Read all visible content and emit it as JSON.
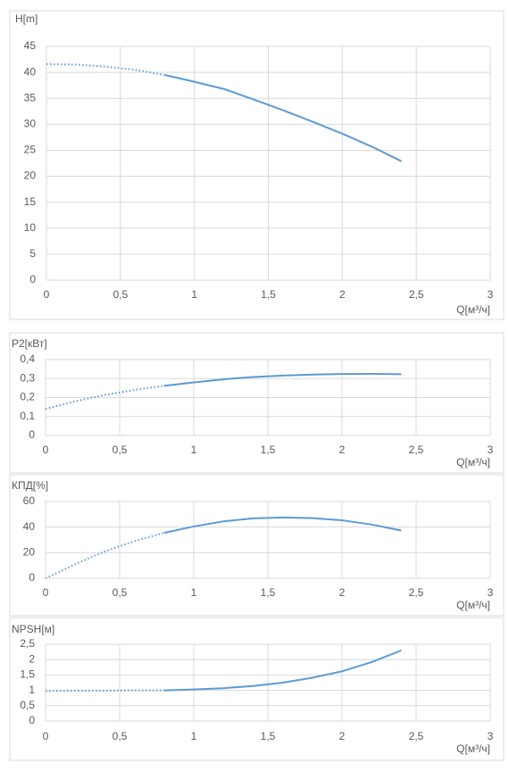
{
  "chart_data": [
    {
      "type": "line",
      "title": "H[m]",
      "x_label": "Q[м³/ч]",
      "x": [
        0,
        0.2,
        0.4,
        0.6,
        0.8,
        1.0,
        1.2,
        1.4,
        1.6,
        1.8,
        2.0,
        2.2,
        2.4
      ],
      "values": [
        41.6,
        41.5,
        41.1,
        40.5,
        39.5,
        38.2,
        36.8,
        34.8,
        32.7,
        30.5,
        28.2,
        25.7,
        22.9
      ],
      "dotted_until": 0.8,
      "color": "#5b9bd5",
      "grid": true,
      "xlim": [
        0,
        3
      ],
      "xticks": [
        0,
        {
          "value": 0.5,
          "label": "0,5"
        },
        1,
        {
          "value": 1.5,
          "label": "1,5"
        },
        2,
        {
          "value": 2.5,
          "label": "2,5"
        },
        3
      ],
      "ylim": [
        0,
        45
      ],
      "yticks": [
        0,
        5,
        10,
        15,
        20,
        25,
        30,
        35,
        40,
        45
      ]
    },
    {
      "type": "line",
      "title": "P2[кВт]",
      "x_label": "Q[м³/ч]",
      "x": [
        0,
        0.2,
        0.4,
        0.6,
        0.8,
        1.0,
        1.2,
        1.4,
        1.6,
        1.8,
        2.0,
        2.2,
        2.4
      ],
      "values": [
        0.14,
        0.18,
        0.214,
        0.24,
        0.262,
        0.28,
        0.296,
        0.308,
        0.316,
        0.321,
        0.324,
        0.325,
        0.323
      ],
      "dotted_until": 0.8,
      "color": "#5b9bd5",
      "grid": true,
      "xlim": [
        0,
        3
      ],
      "xticks": [
        0,
        {
          "value": 0.5,
          "label": "0,5"
        },
        1,
        {
          "value": 1.5,
          "label": "1,5"
        },
        2,
        {
          "value": 2.5,
          "label": "2,5"
        },
        3
      ],
      "ylim": [
        0,
        0.4
      ],
      "yticks": [
        0,
        {
          "value": 0.1,
          "label": "0,1"
        },
        {
          "value": 0.2,
          "label": "0,2"
        },
        {
          "value": 0.3,
          "label": "0,3"
        },
        {
          "value": 0.4,
          "label": "0,4"
        }
      ]
    },
    {
      "type": "line",
      "title": "КПД[%]",
      "x_label": "Q[м³/ч]",
      "x": [
        0,
        0.2,
        0.4,
        0.6,
        0.8,
        1.0,
        1.2,
        1.4,
        1.6,
        1.8,
        2.0,
        2.2,
        2.4
      ],
      "values": [
        0,
        11,
        21,
        29,
        35.5,
        40.5,
        44.5,
        46.8,
        47.5,
        47,
        45.3,
        42,
        37.3
      ],
      "dotted_until": 0.8,
      "color": "#5b9bd5",
      "grid": true,
      "xlim": [
        0,
        3
      ],
      "xticks": [
        0,
        {
          "value": 0.5,
          "label": "0,5"
        },
        1,
        {
          "value": 1.5,
          "label": "1,5"
        },
        2,
        {
          "value": 2.5,
          "label": "2,5"
        },
        3
      ],
      "ylim": [
        0,
        60
      ],
      "yticks": [
        0,
        20,
        40,
        60
      ]
    },
    {
      "type": "line",
      "title": "NPSH[м]",
      "x_label": "Q[м³/ч]",
      "x": [
        0,
        0.2,
        0.4,
        0.6,
        0.8,
        1.0,
        1.2,
        1.4,
        1.6,
        1.8,
        2.0,
        2.2,
        2.4
      ],
      "values": [
        0.98,
        0.99,
        0.99,
        1.0,
        1.0,
        1.03,
        1.07,
        1.14,
        1.25,
        1.41,
        1.62,
        1.92,
        2.3
      ],
      "dotted_until": 0.8,
      "color": "#5b9bd5",
      "grid": true,
      "xlim": [
        0,
        3
      ],
      "xticks": [
        0,
        {
          "value": 0.5,
          "label": "0,5"
        },
        1,
        {
          "value": 1.5,
          "label": "1,5"
        },
        2,
        {
          "value": 2.5,
          "label": "2,5"
        },
        3
      ],
      "ylim": [
        0,
        2.5
      ],
      "yticks": [
        0,
        {
          "value": 0.5,
          "label": "0,5"
        },
        1,
        {
          "value": 1.5,
          "label": "1,5"
        },
        2,
        {
          "value": 2.5,
          "label": "2,5"
        }
      ]
    }
  ]
}
